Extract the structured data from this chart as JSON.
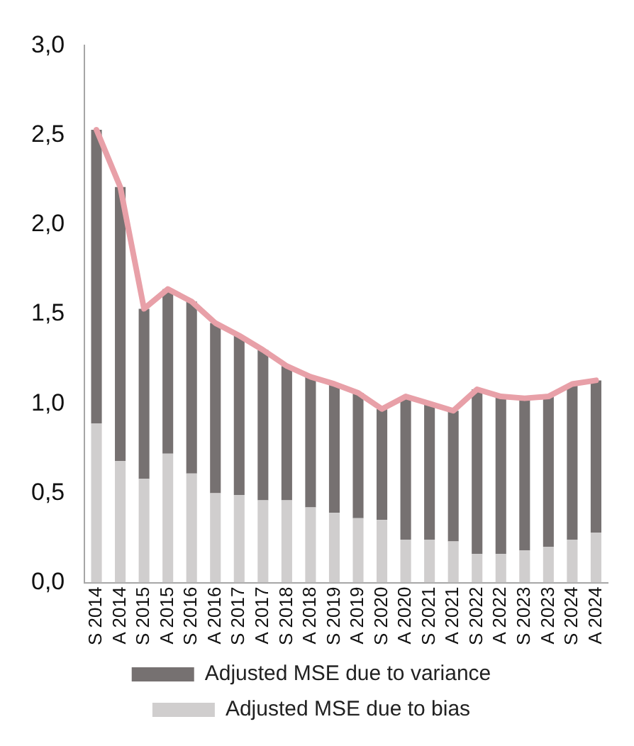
{
  "chart_data": {
    "type": "bar",
    "stacked": true,
    "categories": [
      "S 2014",
      "A 2014",
      "S 2015",
      "A 2015",
      "S 2016",
      "A 2016",
      "S 2017",
      "A 2017",
      "S 2018",
      "A 2018",
      "S 2019",
      "A 2019",
      "S 2020",
      "A 2020",
      "S 2021",
      "A 2021",
      "S 2022",
      "A 2022",
      "S 2023",
      "A 2023",
      "S 2024",
      "A 2024"
    ],
    "series": [
      {
        "name": "Adjusted MSE due to bias",
        "color": "#d0cece",
        "values": [
          0.89,
          0.68,
          0.58,
          0.72,
          0.61,
          0.5,
          0.49,
          0.46,
          0.46,
          0.42,
          0.39,
          0.36,
          0.35,
          0.24,
          0.24,
          0.23,
          0.16,
          0.16,
          0.18,
          0.2,
          0.24,
          0.28
        ]
      },
      {
        "name": "Adjusted MSE due to variance",
        "color": "#767171",
        "values": [
          1.64,
          1.53,
          0.95,
          0.92,
          0.96,
          0.95,
          0.89,
          0.84,
          0.75,
          0.73,
          0.72,
          0.7,
          0.62,
          0.8,
          0.76,
          0.73,
          0.92,
          0.88,
          0.85,
          0.84,
          0.87,
          0.85
        ]
      },
      {
        "type": "line",
        "color": "#e8a0a8",
        "values": [
          2.53,
          2.21,
          1.53,
          1.64,
          1.57,
          1.45,
          1.38,
          1.3,
          1.21,
          1.15,
          1.11,
          1.06,
          0.97,
          1.04,
          1.0,
          0.96,
          1.08,
          1.04,
          1.03,
          1.04,
          1.11,
          1.13
        ]
      }
    ],
    "ylim": [
      0,
      3
    ],
    "yticks": [
      {
        "value": 0,
        "label": "0,0"
      },
      {
        "value": 0.5,
        "label": "0,5"
      },
      {
        "value": 1,
        "label": "1,0"
      },
      {
        "value": 1.5,
        "label": "1,5"
      },
      {
        "value": 2,
        "label": "2,0"
      },
      {
        "value": 2.5,
        "label": "2,5"
      },
      {
        "value": 3,
        "label": "3,0"
      }
    ],
    "grid": false,
    "legend": "bottom",
    "marker": "none"
  }
}
